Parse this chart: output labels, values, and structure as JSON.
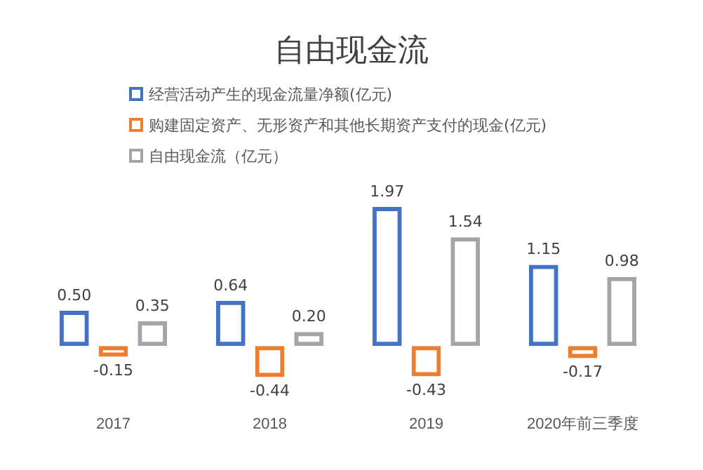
{
  "chart_data": {
    "type": "bar",
    "title": "自由现金流",
    "categories": [
      "2017",
      "2018",
      "2019",
      "2020年前三季度"
    ],
    "series": [
      {
        "name": "经营活动产生的现金流量净额(亿元)",
        "color": "#4472c4",
        "values": [
          0.5,
          0.64,
          1.97,
          1.15
        ],
        "value_labels": [
          "0.50",
          "0.64",
          "1.97",
          "1.15"
        ]
      },
      {
        "name": "购建固定资产、无形资产和其他长期资产支付的现金(亿元)",
        "color": "#ed7d31",
        "values": [
          -0.15,
          -0.44,
          -0.43,
          -0.17
        ],
        "value_labels": [
          "-0.15",
          "-0.44",
          "-0.43",
          "-0.17"
        ]
      },
      {
        "name": "自由现金流（亿元）",
        "color": "#a5a5a5",
        "values": [
          0.35,
          0.2,
          1.54,
          0.98
        ],
        "value_labels": [
          "0.35",
          "0.20",
          "1.54",
          "0.98"
        ]
      }
    ],
    "legend": "top",
    "grid": false
  }
}
